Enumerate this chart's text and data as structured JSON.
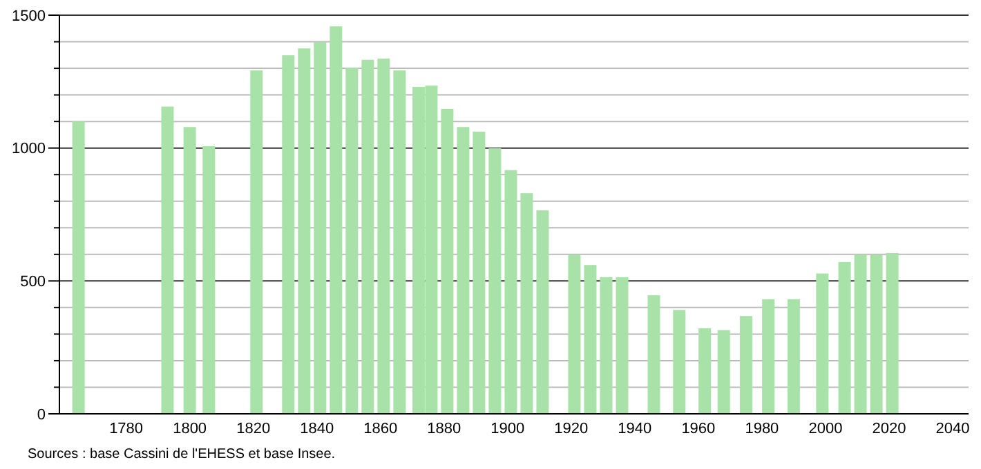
{
  "chart_data": {
    "type": "bar",
    "x": [
      1765,
      1793,
      1800,
      1806,
      1821,
      1831,
      1836,
      1841,
      1846,
      1851,
      1856,
      1861,
      1866,
      1872,
      1876,
      1881,
      1886,
      1891,
      1896,
      1901,
      1906,
      1911,
      1921,
      1926,
      1931,
      1936,
      1946,
      1954,
      1962,
      1968,
      1975,
      1982,
      1990,
      1999,
      2006,
      2011,
      2016,
      2021
    ],
    "values": [
      1100,
      1156,
      1079,
      1007,
      1292,
      1349,
      1375,
      1399,
      1458,
      1302,
      1332,
      1337,
      1292,
      1230,
      1235,
      1147,
      1079,
      1062,
      1000,
      917,
      830,
      766,
      600,
      560,
      514,
      514,
      446,
      391,
      322,
      315,
      368,
      431,
      431,
      528,
      571,
      600,
      600,
      605
    ],
    "color": "#a8e2a8",
    "xlim": [
      1759,
      2045
    ],
    "xticks": [
      1780,
      1800,
      1820,
      1840,
      1860,
      1880,
      1900,
      1920,
      1940,
      1960,
      1980,
      2000,
      2020,
      2040
    ],
    "ylim": [
      0,
      1500
    ],
    "yticks": [
      0,
      {
        "value": 100,
        "label": null
      },
      {
        "value": 200,
        "label": null
      },
      {
        "value": 300,
        "label": null
      },
      {
        "value": 400,
        "label": null
      },
      500,
      {
        "value": 600,
        "label": null
      },
      {
        "value": 700,
        "label": null
      },
      {
        "value": 800,
        "label": null
      },
      {
        "value": 900,
        "label": null
      },
      1000,
      {
        "value": 1100,
        "label": null
      },
      {
        "value": 1200,
        "label": null
      },
      {
        "value": 1300,
        "label": null
      },
      {
        "value": 1400,
        "label": null
      },
      1500
    ],
    "grid": "y",
    "annotations": [
      "Sources : base Cassini de l'EHESS et base Insee."
    ]
  }
}
